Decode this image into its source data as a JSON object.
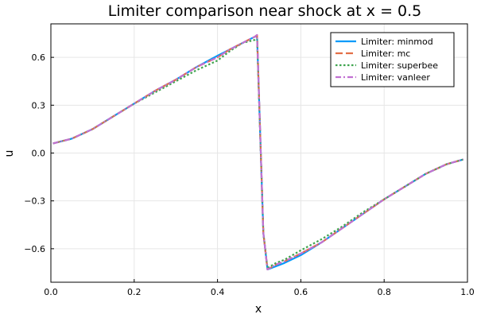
{
  "chart_data": {
    "type": "line",
    "title": "Limiter comparison near shock at x = 0.5",
    "xlabel": "x",
    "ylabel": "u",
    "xlim": [
      0.0,
      1.0
    ],
    "ylim": [
      -0.81,
      0.81
    ],
    "xticks": [
      0.0,
      0.2,
      0.4,
      0.6,
      0.8,
      1.0
    ],
    "xtick_labels": [
      "0.0",
      "0.2",
      "0.4",
      "0.6",
      "0.8",
      "1.0"
    ],
    "yticks": [
      -0.6,
      -0.3,
      0.0,
      0.3,
      0.6
    ],
    "ytick_labels": [
      "−0.6",
      "−0.3",
      "0.0",
      "0.3",
      "0.6"
    ],
    "grid": true,
    "legend_position": "top-right",
    "series": [
      {
        "name": "Limiter: minmod",
        "color": "#009AFA",
        "dash": "solid",
        "x": [
          0.005,
          0.05,
          0.1,
          0.15,
          0.2,
          0.25,
          0.3,
          0.35,
          0.4,
          0.43,
          0.46,
          0.49,
          0.495,
          0.51,
          0.52,
          0.54,
          0.56,
          0.6,
          0.65,
          0.7,
          0.75,
          0.8,
          0.85,
          0.9,
          0.95,
          0.99
        ],
        "y": [
          0.06,
          0.09,
          0.15,
          0.23,
          0.31,
          0.39,
          0.46,
          0.54,
          0.61,
          0.65,
          0.69,
          0.73,
          0.73,
          -0.5,
          -0.73,
          -0.71,
          -0.69,
          -0.64,
          -0.56,
          -0.47,
          -0.38,
          -0.29,
          -0.21,
          -0.13,
          -0.07,
          -0.04
        ]
      },
      {
        "name": "Limiter: mc",
        "color": "#E36F47",
        "dash": "long-dash",
        "x": [
          0.005,
          0.05,
          0.1,
          0.15,
          0.2,
          0.25,
          0.3,
          0.35,
          0.4,
          0.43,
          0.46,
          0.49,
          0.495,
          0.51,
          0.52,
          0.54,
          0.56,
          0.6,
          0.65,
          0.7,
          0.75,
          0.8,
          0.85,
          0.9,
          0.95,
          0.99
        ],
        "y": [
          0.06,
          0.09,
          0.15,
          0.23,
          0.31,
          0.39,
          0.46,
          0.54,
          0.6,
          0.65,
          0.69,
          0.73,
          0.74,
          -0.5,
          -0.73,
          -0.7,
          -0.68,
          -0.63,
          -0.56,
          -0.47,
          -0.38,
          -0.29,
          -0.21,
          -0.13,
          -0.07,
          -0.04
        ]
      },
      {
        "name": "Limiter: superbee",
        "color": "#3EA44E",
        "dash": "dotted",
        "x": [
          0.005,
          0.05,
          0.1,
          0.15,
          0.2,
          0.25,
          0.3,
          0.35,
          0.4,
          0.41,
          0.43,
          0.46,
          0.49,
          0.495,
          0.51,
          0.52,
          0.54,
          0.56,
          0.6,
          0.65,
          0.7,
          0.75,
          0.8,
          0.85,
          0.9,
          0.95,
          0.99
        ],
        "y": [
          0.06,
          0.09,
          0.15,
          0.23,
          0.31,
          0.38,
          0.45,
          0.52,
          0.58,
          0.6,
          0.64,
          0.69,
          0.71,
          0.72,
          -0.5,
          -0.72,
          -0.69,
          -0.67,
          -0.61,
          -0.54,
          -0.46,
          -0.37,
          -0.29,
          -0.21,
          -0.13,
          -0.07,
          -0.04
        ]
      },
      {
        "name": "Limiter: vanleer",
        "color": "#C271D2",
        "dash": "dash-dot",
        "x": [
          0.005,
          0.05,
          0.1,
          0.15,
          0.2,
          0.25,
          0.3,
          0.35,
          0.4,
          0.43,
          0.46,
          0.49,
          0.495,
          0.51,
          0.52,
          0.54,
          0.56,
          0.6,
          0.65,
          0.7,
          0.75,
          0.8,
          0.85,
          0.9,
          0.95,
          0.99
        ],
        "y": [
          0.06,
          0.09,
          0.15,
          0.23,
          0.31,
          0.39,
          0.46,
          0.54,
          0.6,
          0.65,
          0.69,
          0.73,
          0.74,
          -0.5,
          -0.73,
          -0.7,
          -0.68,
          -0.63,
          -0.56,
          -0.47,
          -0.38,
          -0.29,
          -0.21,
          -0.13,
          -0.07,
          -0.04
        ]
      }
    ]
  }
}
